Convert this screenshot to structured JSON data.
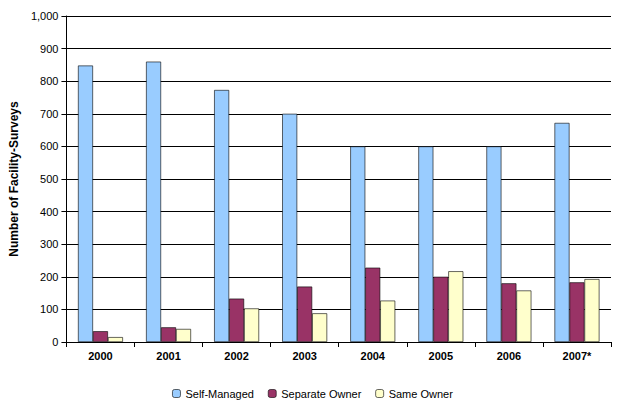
{
  "chart_data": {
    "type": "bar",
    "y_label": "Number of Facility-Surveys",
    "categories": [
      "2000",
      "2001",
      "2002",
      "2003",
      "2004",
      "2005",
      "2006",
      "2007*"
    ],
    "series": [
      {
        "name": "Self-Managed",
        "color": "#99ccff",
        "values": [
          848,
          860,
          773,
          700,
          600,
          600,
          600,
          672
        ]
      },
      {
        "name": "Separate Owner",
        "color": "#993366",
        "values": [
          33,
          45,
          133,
          170,
          228,
          200,
          180,
          183
        ]
      },
      {
        "name": "Same Owner",
        "color": "#ffffcc",
        "values": [
          15,
          40,
          103,
          88,
          127,
          217,
          158,
          193
        ]
      }
    ],
    "ylim": [
      0,
      1000
    ],
    "yticks": [
      0,
      100,
      200,
      300,
      400,
      500,
      600,
      700,
      800,
      900,
      1000
    ],
    "grid": true,
    "legend": "bottom"
  }
}
